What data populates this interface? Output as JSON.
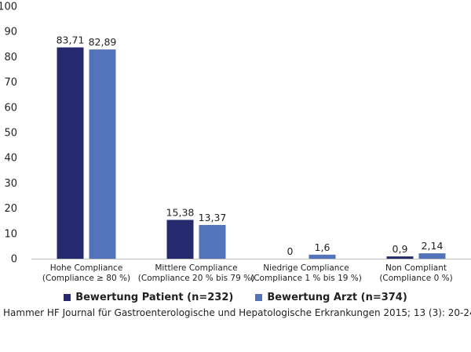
{
  "chart_data": {
    "type": "bar",
    "categories": [
      [
        "Hohe Compliance",
        "(Compliance ≥ 80 %)"
      ],
      [
        "Mittlere Compliance",
        "(Compliance 20 % bis 79 %)"
      ],
      [
        "Niedrige Compliance",
        "(Compliance 1 % bis 19 %)"
      ],
      [
        "Non Compliant",
        "(Compliance 0 %)"
      ]
    ],
    "series": [
      {
        "name": "Bewertung Patient (n=232)",
        "color": "#252a6e",
        "values": [
          83.71,
          15.38,
          0,
          0.9
        ],
        "labels": [
          "83,71",
          "15,38",
          "0",
          "0,9"
        ]
      },
      {
        "name": "Bewertung Arzt (n=374)",
        "color": "#5474b9",
        "values": [
          82.89,
          13.37,
          1.6,
          2.14
        ],
        "labels": [
          "82,89",
          "13,37",
          "1,6",
          "2,14"
        ]
      }
    ],
    "ylim": [
      0,
      100
    ],
    "yticks": [
      0,
      10,
      20,
      30,
      40,
      50,
      60,
      70,
      80,
      90,
      100
    ],
    "grid": false,
    "legend": "bottom"
  },
  "source": "Hammer HF Journal für Gastroenterologische und Hepatologische Erkrankungen 2015; 13 (3): 20-24 ©"
}
